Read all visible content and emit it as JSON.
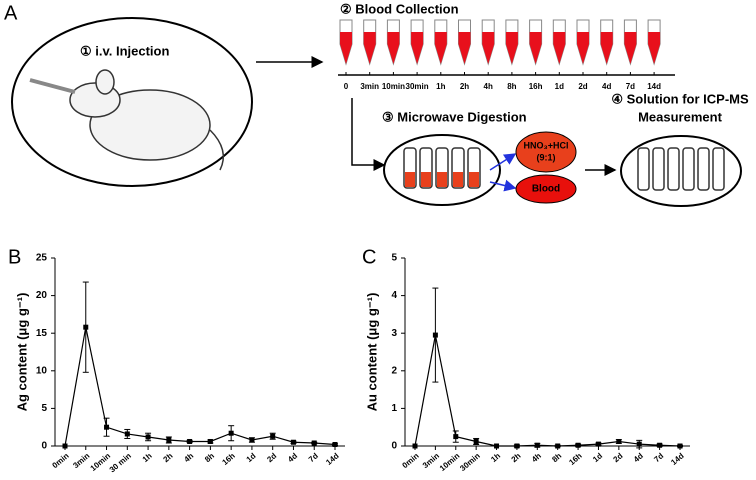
{
  "schematic": {
    "panel_label": "A",
    "step1": "① i.v. Injection",
    "step2": "② Blood Collection",
    "timepoints": [
      "0",
      "3min",
      "10min",
      "30min",
      "1h",
      "2h",
      "4h",
      "8h",
      "16h",
      "1d",
      "2d",
      "4d",
      "7d",
      "14d"
    ],
    "step3": "③ Microwave Digestion",
    "acid_lines": [
      "HNO₃+HCl",
      "(9:1)"
    ],
    "blood": "Blood",
    "step4_lines": [
      "④ Solution for ICP-MS",
      "Measurement"
    ]
  },
  "chart_data": [
    {
      "type": "line",
      "panel_label": "B",
      "y_label": "Ag content (μg g⁻¹)",
      "color": "#000000",
      "categories": [
        "0min",
        "3min",
        "10min",
        "30 min",
        "1h",
        "2h",
        "4h",
        "8h",
        "16h",
        "1d",
        "2d",
        "4d",
        "7d",
        "14d"
      ],
      "values": [
        0,
        15.8,
        2.5,
        1.6,
        1.2,
        0.8,
        0.6,
        0.6,
        1.7,
        0.8,
        1.3,
        0.5,
        0.4,
        0.2
      ],
      "errors": [
        0,
        6,
        1.2,
        0.6,
        0.5,
        0.4,
        0.15,
        0.2,
        1,
        0.3,
        0.4,
        0.15,
        0.1,
        0.1
      ],
      "ylim": [
        0,
        25
      ],
      "yticks": [
        0,
        5,
        10,
        15,
        20,
        25
      ]
    },
    {
      "type": "line",
      "panel_label": "C",
      "y_label": "Au content (μg g⁻¹)",
      "color": "#000000",
      "categories": [
        "0min",
        "3min",
        "10min",
        "30min",
        "1h",
        "2h",
        "4h",
        "8h",
        "16h",
        "1d",
        "2d",
        "4d",
        "7d",
        "14d"
      ],
      "values": [
        0,
        2.95,
        0.25,
        0.12,
        0,
        0,
        0.02,
        0,
        0.02,
        0.05,
        0.12,
        0.05,
        0.02,
        0
      ],
      "errors": [
        0,
        1.25,
        0.15,
        0.08,
        0,
        0.03,
        0.05,
        0.02,
        0.03,
        0.03,
        0.05,
        0.1,
        0.03,
        0.02
      ],
      "ylim": [
        0,
        5
      ],
      "yticks": [
        0,
        1,
        2,
        3,
        4,
        5
      ]
    }
  ]
}
